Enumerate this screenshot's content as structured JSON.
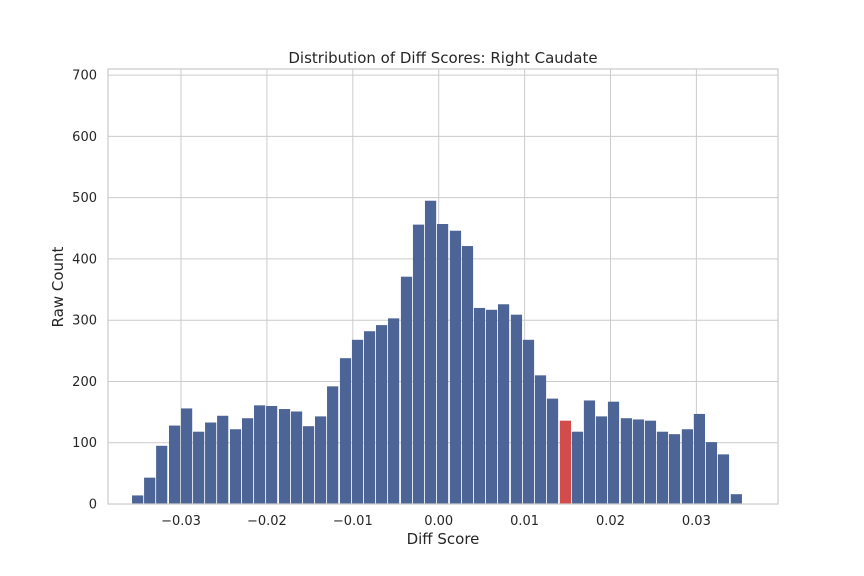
{
  "chart_data": {
    "type": "bar",
    "title": "Distribution of Diff Scores: Right Caudate",
    "xlabel": "Diff Score",
    "ylabel": "Raw Count",
    "xlim": [
      -0.0385,
      0.0395
    ],
    "ylim": [
      0,
      710
    ],
    "grid": true,
    "bar_width": 0.00142,
    "x_ticks": [
      -0.03,
      -0.02,
      -0.01,
      0.0,
      0.01,
      0.02,
      0.03
    ],
    "x_tick_labels": [
      "−0.03",
      "−0.02",
      "−0.01",
      "0.00",
      "0.01",
      "0.02",
      "0.03"
    ],
    "y_ticks": [
      0,
      100,
      200,
      300,
      400,
      500,
      600,
      700
    ],
    "y_tick_labels": [
      "0",
      "100",
      "200",
      "300",
      "400",
      "500",
      "600",
      "700"
    ],
    "bar_color": "#4c6496",
    "highlight_color": "#d34c4c",
    "highlight_index": 35,
    "bin_left": [
      -0.0357,
      -0.0343,
      -0.0329,
      -0.0314,
      -0.03,
      -0.0286,
      -0.0272,
      -0.0258,
      -0.0243,
      -0.0229,
      -0.0215,
      -0.0201,
      -0.0186,
      -0.0172,
      -0.0158,
      -0.0144,
      -0.013,
      -0.0115,
      -0.0101,
      -0.0087,
      -0.0073,
      -0.0059,
      -0.0044,
      -0.003,
      -0.0016,
      -0.0002,
      0.0013,
      0.0027,
      0.0041,
      0.0055,
      0.0069,
      0.0084,
      0.0098,
      0.0112,
      0.0126,
      0.0141,
      0.0155,
      0.0169,
      0.0183,
      0.0197,
      0.0212,
      0.0226,
      0.024,
      0.0254,
      0.0268,
      0.0283,
      0.0297,
      0.0311,
      0.0325,
      0.034
    ],
    "values": [
      14,
      43,
      95,
      128,
      156,
      118,
      133,
      144,
      122,
      140,
      161,
      160,
      155,
      151,
      127,
      143,
      192,
      238,
      268,
      282,
      292,
      303,
      371,
      456,
      495,
      457,
      446,
      421,
      320,
      317,
      326,
      309,
      268,
      210,
      172,
      136,
      118,
      169,
      143,
      167,
      140,
      138,
      136,
      118,
      114,
      122,
      147,
      101,
      81,
      16
    ]
  }
}
